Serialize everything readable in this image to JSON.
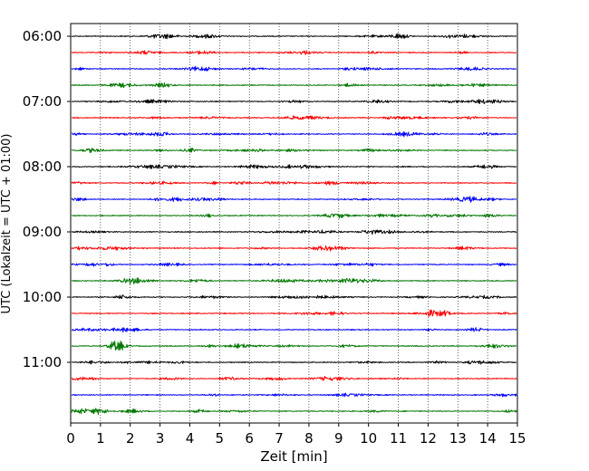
{
  "chart_data": {
    "type": "line",
    "title": "",
    "xlabel": "Zeit  [min]",
    "ylabel": "UTC (Lokalzeit = UTC + 01:00)",
    "xlim": [
      0,
      15
    ],
    "x_ticks": [
      "0",
      "1",
      "2",
      "3",
      "4",
      "5",
      "6",
      "7",
      "8",
      "9",
      "10",
      "11",
      "12",
      "13",
      "14",
      "15"
    ],
    "y_ticks": [
      "06:00",
      "07:00",
      "08:00",
      "09:00",
      "10:00",
      "11:00"
    ],
    "grid": "vertical-dotted",
    "trace_interval_min": 15,
    "trace_colors": [
      "#000000",
      "#ff0000",
      "#0000ff",
      "#007700"
    ],
    "series": [
      {
        "start": "06:00"
      },
      {
        "start": "06:15"
      },
      {
        "start": "06:30"
      },
      {
        "start": "06:45"
      },
      {
        "start": "07:00"
      },
      {
        "start": "07:15"
      },
      {
        "start": "07:30"
      },
      {
        "start": "07:45"
      },
      {
        "start": "08:00"
      },
      {
        "start": "08:15"
      },
      {
        "start": "08:30"
      },
      {
        "start": "08:45"
      },
      {
        "start": "09:00"
      },
      {
        "start": "09:15"
      },
      {
        "start": "09:30"
      },
      {
        "start": "09:45"
      },
      {
        "start": "10:00"
      },
      {
        "start": "10:15"
      },
      {
        "start": "10:30"
      },
      {
        "start": "10:45"
      },
      {
        "start": "11:00"
      },
      {
        "start": "11:15"
      },
      {
        "start": "11:30"
      },
      {
        "start": "11:45"
      }
    ]
  }
}
